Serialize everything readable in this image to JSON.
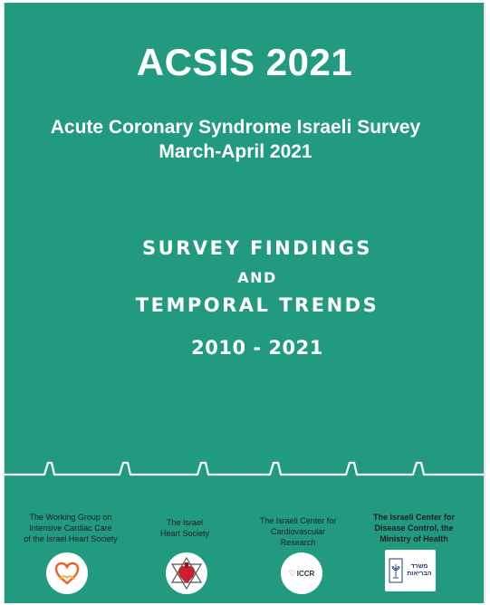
{
  "cover": {
    "title": "ACSIS 2021",
    "subtitle_line1": "Acute Coronary Syndrome Israeli Survey",
    "subtitle_line2": "March-April  2021",
    "findings_line1": "SURVEY FINDINGS",
    "findings_line2": "AND",
    "findings_line3": "TEMPORAL TRENDS",
    "years": "2010 - 2021"
  },
  "colors": {
    "background": "#219a80",
    "text": "#ffffff",
    "ecg_line": "#ffffff"
  },
  "organizations": [
    {
      "lines": [
        "The Working Group on",
        "Intensive Cardiac Care",
        "of the Israel Heart Society"
      ],
      "logo_icon": "heart-hands-icon"
    },
    {
      "lines": [
        "The Israel",
        "Heart Society"
      ],
      "logo_icon": "heart-star-icon"
    },
    {
      "lines": [
        "The Israeli Center for",
        "Cardiovascular",
        "Research"
      ],
      "logo_icon": "iccr-logo",
      "logo_text": "ICCR"
    },
    {
      "lines": [
        "The Israeli Center for",
        "Disease Control, the",
        "Ministry of Health"
      ],
      "logo_icon": "ministry-of-health-logo",
      "logo_text_lines": [
        "משרד",
        "הבריאות"
      ]
    }
  ]
}
